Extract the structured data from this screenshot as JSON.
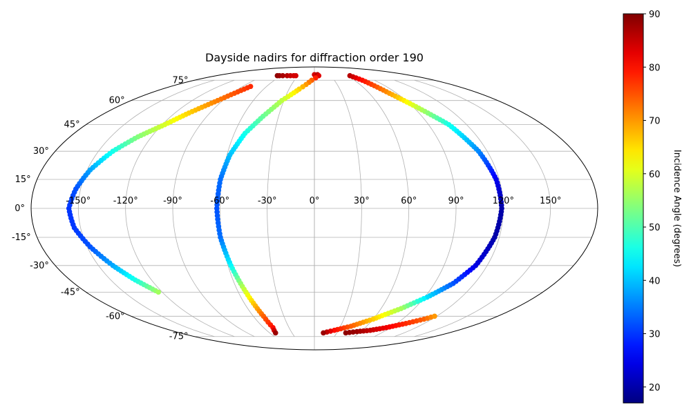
{
  "chart_data": {
    "type": "scatter",
    "projection": "mollweide",
    "title": "Dayside nadirs for diffraction order 190",
    "colorbar": {
      "label": "Incidence Angle (degrees)",
      "colormap": "jet",
      "range": [
        17,
        90
      ],
      "ticks": [
        20,
        30,
        40,
        50,
        60,
        70,
        80,
        90
      ],
      "tick_labels": [
        "20",
        "30",
        "40",
        "50",
        "60",
        "70",
        "80",
        "90"
      ]
    },
    "lon_ticks": [
      -150,
      -120,
      -90,
      -60,
      -30,
      0,
      30,
      60,
      90,
      120,
      150
    ],
    "lon_tick_labels": [
      "-150°",
      "-120°",
      "-90°",
      "-60°",
      "-30°",
      "0°",
      "30°",
      "60°",
      "90°",
      "120°",
      "150°"
    ],
    "lat_ticks": [
      -75,
      -60,
      -45,
      -30,
      -15,
      0,
      15,
      30,
      45,
      60,
      75
    ],
    "lat_tick_labels": [
      "-75°",
      "-60°",
      "-45°",
      "-30°",
      "-15°",
      "0°",
      "15°",
      "30°",
      "45°",
      "60°",
      "75°"
    ],
    "grid": true,
    "series": [
      {
        "x": [
          -68,
          -64,
          -58,
          -50,
          -44,
          -38,
          -34
        ],
        "y": [
          79,
          79,
          79,
          79,
          79,
          79,
          79
        ],
        "values": [
          89,
          88,
          87,
          86,
          85,
          84,
          84
        ]
      },
      {
        "x": [
          -80,
          -95,
          -108,
          -118,
          -130,
          -140,
          -148,
          -153,
          -156,
          -154,
          -148,
          -140,
          -132,
          -123
        ],
        "y": [
          70,
          60,
          52,
          45,
          38,
          30,
          20,
          10,
          0,
          -10,
          -20,
          -30,
          -38,
          -45
        ],
        "values": [
          78,
          72,
          66,
          60,
          54,
          46,
          38,
          32,
          30,
          30,
          32,
          38,
          46,
          56
        ]
      },
      {
        "x": [
          0,
          6,
          8,
          -4,
          -18,
          -32,
          -43,
          -52,
          -58,
          -61,
          -62,
          -61,
          -58,
          -54,
          -50,
          -49,
          -52
        ],
        "y": [
          80,
          80,
          79,
          75,
          68,
          60,
          50,
          40,
          28,
          15,
          0,
          -15,
          -30,
          -45,
          -60,
          -68,
          -72
        ],
        "values": [
          84,
          86,
          83,
          74,
          66,
          58,
          52,
          46,
          40,
          34,
          32,
          34,
          44,
          60,
          74,
          80,
          88
        ]
      },
      {
        "x": [
          65,
          72,
          82,
          94,
          106,
          114,
          118,
          119,
          117,
          112,
          104,
          92,
          78,
          60,
          42,
          25,
          12
        ],
        "y": [
          79,
          75,
          65,
          55,
          45,
          30,
          15,
          0,
          -15,
          -30,
          -40,
          -48,
          -55,
          -62,
          -67,
          -70,
          -72
        ],
        "values": [
          86,
          80,
          70,
          58,
          46,
          36,
          25,
          20,
          20,
          24,
          32,
          42,
          56,
          66,
          74,
          80,
          88
        ]
      },
      {
        "x": [
          42,
          55,
          70,
          85,
          100,
          112,
          118
        ],
        "y": [
          -72,
          -71,
          -70,
          -68,
          -65,
          -62,
          -60
        ],
        "values": [
          89,
          88,
          85,
          82,
          78,
          74,
          70
        ]
      }
    ]
  }
}
